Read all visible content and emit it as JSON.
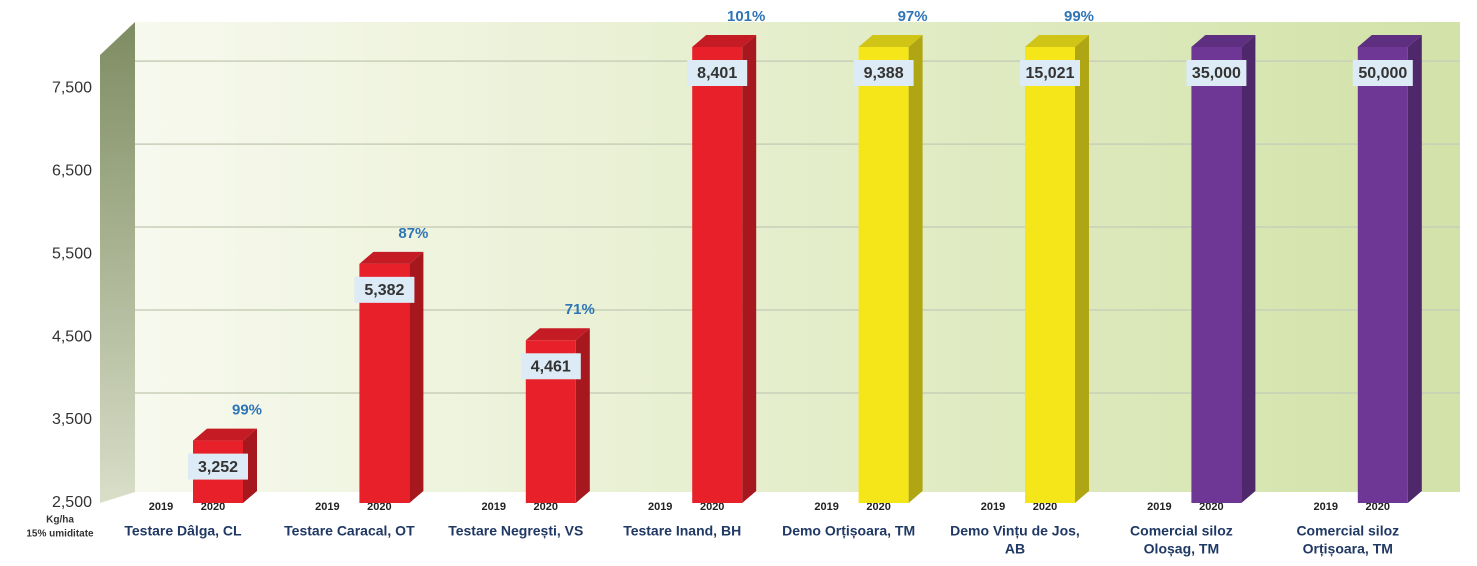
{
  "chart_data": {
    "type": "bar3d",
    "y_axis_label": [
      "Kg/ha",
      "15% umiditate"
    ],
    "categories": [
      [
        "Testare Dâlga, CL"
      ],
      [
        "Testare Caracal, OT"
      ],
      [
        "Testare Negrești, VS"
      ],
      [
        "Testare Inand, BH"
      ],
      [
        "Demo Orțișoara, TM"
      ],
      [
        "Demo Vințu de Jos,",
        "AB"
      ],
      [
        "Comercial siloz",
        "Oloșag, TM"
      ],
      [
        "Comercial siloz",
        "Orțișoara, TM"
      ]
    ],
    "sub_categories": [
      "2019",
      "2020"
    ],
    "series": [
      {
        "name": "2020",
        "values": [
          3252,
          5382,
          4461,
          8401,
          9388,
          15021,
          35000,
          50000
        ],
        "value_labels": [
          "3,252",
          "5,382",
          "4,461",
          "8,401",
          "9,388",
          "15,021",
          "35,000",
          "50,000"
        ],
        "colors": [
          "#e8202a",
          "#e8202a",
          "#e8202a",
          "#e8202a",
          "#f5e61a",
          "#f5e61a",
          "#6e3796",
          "#6e3796"
        ]
      }
    ],
    "percent_labels": [
      "99%",
      "87%",
      "71%",
      "101%",
      "97%",
      "99%",
      null,
      null
    ],
    "ylim": [
      2500,
      8200
    ],
    "yticks": [
      {
        "value": 2500,
        "label": "2,500"
      },
      {
        "value": 3500,
        "label": "3,500"
      },
      {
        "value": 4500,
        "label": "4,500"
      },
      {
        "value": 5500,
        "label": "5,500"
      },
      {
        "value": 6500,
        "label": "6,500"
      },
      {
        "value": 7500,
        "label": "7,500"
      }
    ],
    "grid": true
  }
}
